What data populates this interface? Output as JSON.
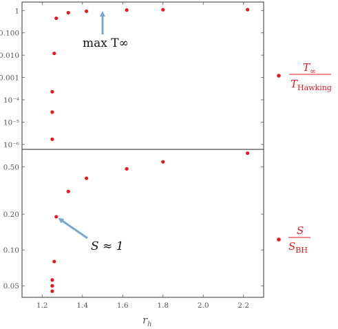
{
  "chart_data": [
    {
      "type": "scatter",
      "yscale": "log",
      "ylim": [
        6e-07,
        2.4
      ],
      "xlim": [
        1.1,
        2.3
      ],
      "y_ticks": [
        {
          "label": "1",
          "value": 1
        },
        {
          "label": "0.100",
          "value": 0.1
        },
        {
          "label": "0.010",
          "value": 0.01
        },
        {
          "label": "0.001",
          "value": 0.001
        },
        {
          "label": "10⁻⁴",
          "value": 0.0001
        },
        {
          "label": "10⁻⁵",
          "value": 1e-05
        },
        {
          "label": "10⁻⁶",
          "value": 1e-06
        }
      ],
      "series": [
        {
          "color": "#e41a1c",
          "x": [
            1.25,
            1.25,
            1.25,
            1.26,
            1.27,
            1.33,
            1.42,
            1.62,
            1.8,
            2.22
          ],
          "y": [
            1.7e-06,
            2.8e-05,
            0.00023,
            0.012,
            0.45,
            0.8,
            0.93,
            1.05,
            1.09,
            1.1
          ]
        }
      ],
      "annotation": {
        "text": "max  T∞",
        "points_to_x": 1.5,
        "points_to_y": 1.0
      },
      "legend": {
        "numerator": "T∞",
        "denominator": "THawking"
      }
    },
    {
      "type": "scatter",
      "yscale": "log",
      "ylim": [
        0.04,
        0.7
      ],
      "xlim": [
        1.1,
        2.3
      ],
      "y_ticks": [
        {
          "label": "0.50",
          "value": 0.5
        },
        {
          "label": "0.20",
          "value": 0.2
        },
        {
          "label": "0.10",
          "value": 0.1
        },
        {
          "label": "0.05",
          "value": 0.05
        }
      ],
      "x_ticks": [
        {
          "label": "1.2",
          "value": 1.2
        },
        {
          "label": "1.4",
          "value": 1.4
        },
        {
          "label": "1.6",
          "value": 1.6
        },
        {
          "label": "1.8",
          "value": 1.8
        },
        {
          "label": "2.0",
          "value": 2.0
        },
        {
          "label": "2.2",
          "value": 2.2
        }
      ],
      "xlabel": "r_h",
      "series": [
        {
          "color": "#e41a1c",
          "x": [
            1.25,
            1.25,
            1.25,
            1.26,
            1.27,
            1.33,
            1.42,
            1.62,
            1.8,
            2.22
          ],
          "y": [
            0.045,
            0.05,
            0.056,
            0.08,
            0.19,
            0.31,
            0.4,
            0.48,
            0.55,
            0.65
          ]
        }
      ],
      "annotation": {
        "text": "S ≈ 1",
        "points_to_x": 1.27,
        "points_to_y": 0.19
      },
      "legend": {
        "numerator": "S",
        "denominator": "SBH"
      }
    }
  ]
}
